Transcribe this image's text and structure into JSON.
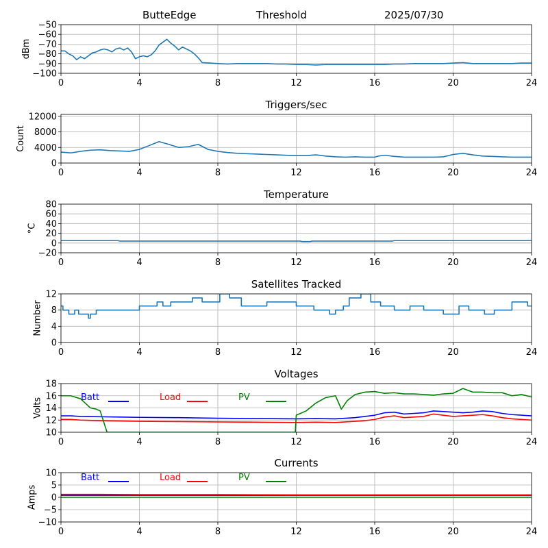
{
  "header": {
    "station": "ButteEdge",
    "mode": "Threshold",
    "date": "2025/07/30"
  },
  "colors": {
    "default": "#1f77b4",
    "batt": "#0000ff",
    "load": "#ff0000",
    "pv": "#008000",
    "grid": "#b0b0b0"
  },
  "x_axis": {
    "range": [
      0,
      24
    ],
    "ticks": [
      0,
      4,
      8,
      12,
      16,
      20,
      24
    ]
  },
  "chart_data": [
    {
      "id": "threshold",
      "type": "line",
      "title": "",
      "xlabel": "",
      "ylabel": "dBm",
      "xlim": [
        0,
        24
      ],
      "ylim": [
        -100,
        -50
      ],
      "yticks": [
        -50,
        -60,
        -70,
        -80,
        -90,
        -100
      ],
      "grid": true,
      "series": [
        {
          "color": "#1f77b4",
          "x": [
            0,
            0.2,
            0.4,
            0.6,
            0.8,
            1.0,
            1.2,
            1.4,
            1.6,
            1.8,
            2.0,
            2.2,
            2.4,
            2.6,
            2.8,
            3.0,
            3.2,
            3.4,
            3.6,
            3.8,
            4.0,
            4.2,
            4.4,
            4.6,
            4.8,
            5.0,
            5.2,
            5.4,
            5.6,
            5.8,
            6.0,
            6.2,
            6.4,
            6.6,
            6.8,
            7.0,
            7.2,
            7.6,
            8.0,
            8.5,
            9.0,
            9.5,
            10.0,
            10.5,
            11.0,
            11.5,
            12.0,
            12.5,
            13.0,
            13.5,
            14.0,
            14.5,
            15.0,
            15.5,
            16.0,
            16.5,
            17.0,
            17.5,
            18.0,
            18.5,
            19.0,
            19.5,
            20.0,
            20.5,
            21.0,
            21.5,
            22.0,
            22.5,
            23.0,
            23.5,
            24.0
          ],
          "y": [
            -77,
            -77,
            -80,
            -82,
            -86,
            -83,
            -85,
            -82,
            -79,
            -78,
            -76,
            -75,
            -76,
            -78,
            -75,
            -74,
            -76,
            -74,
            -78,
            -85,
            -83,
            -82,
            -83,
            -81,
            -77,
            -71,
            -68,
            -65,
            -69,
            -72,
            -76,
            -73,
            -75,
            -77,
            -80,
            -84,
            -89,
            -89.5,
            -90,
            -90.5,
            -90,
            -90,
            -90,
            -90,
            -90.5,
            -90.5,
            -91,
            -91,
            -91.5,
            -91,
            -91,
            -91,
            -91,
            -91,
            -91,
            -91,
            -90.5,
            -90.5,
            -90,
            -90,
            -90,
            -90,
            -89.5,
            -89,
            -90,
            -90,
            -90,
            -90,
            -90,
            -89.5,
            -89.5
          ]
        }
      ]
    },
    {
      "id": "triggers",
      "type": "line",
      "title": "Triggers/sec",
      "xlabel": "",
      "ylabel": "Count",
      "xlim": [
        0,
        24
      ],
      "ylim": [
        0,
        12500
      ],
      "yticks": [
        0,
        4000,
        8000,
        12000
      ],
      "grid": true,
      "series": [
        {
          "color": "#1f77b4",
          "x": [
            0,
            0.5,
            1.0,
            1.5,
            2.0,
            2.5,
            3.0,
            3.5,
            4.0,
            4.5,
            5.0,
            5.5,
            6.0,
            6.5,
            7.0,
            7.5,
            8.0,
            8.5,
            9.0,
            9.5,
            10.0,
            10.5,
            11.0,
            11.5,
            12.0,
            12.5,
            13.0,
            13.5,
            14.0,
            14.5,
            15.0,
            15.5,
            16.0,
            16.2,
            16.5,
            17.0,
            17.5,
            18.0,
            18.5,
            19.0,
            19.5,
            20.0,
            20.5,
            21.0,
            21.5,
            22.0,
            22.5,
            23.0,
            23.5,
            24.0
          ],
          "y": [
            2800,
            2600,
            3000,
            3300,
            3400,
            3200,
            3100,
            3000,
            3500,
            4500,
            5500,
            4800,
            4000,
            4200,
            4800,
            3500,
            3000,
            2700,
            2500,
            2400,
            2300,
            2200,
            2100,
            2000,
            1900,
            1900,
            2100,
            1800,
            1600,
            1500,
            1600,
            1500,
            1500,
            1800,
            2000,
            1700,
            1500,
            1500,
            1500,
            1500,
            1600,
            2200,
            2500,
            2100,
            1800,
            1700,
            1600,
            1500,
            1500,
            1500
          ]
        }
      ]
    },
    {
      "id": "temperature",
      "type": "line",
      "title": "Temperature",
      "xlabel": "",
      "ylabel": "°C",
      "xlim": [
        0,
        24
      ],
      "ylim": [
        -20,
        80
      ],
      "yticks": [
        -20,
        0,
        20,
        40,
        60,
        80
      ],
      "grid": true,
      "series": [
        {
          "color": "#1f77b4",
          "x": [
            0,
            2.9,
            3.0,
            12.2,
            12.3,
            12.7,
            12.8,
            16.9,
            17.0,
            24.0
          ],
          "y": [
            5,
            5,
            4,
            4,
            3,
            3,
            4,
            4,
            5,
            5
          ]
        }
      ]
    },
    {
      "id": "satellites",
      "type": "line",
      "title": "Satellites Tracked",
      "xlabel": "",
      "ylabel": "Number",
      "xlim": [
        0,
        24
      ],
      "ylim": [
        0,
        12
      ],
      "yticks": [
        0,
        4,
        8,
        12
      ],
      "grid": true,
      "series": [
        {
          "color": "#1f77b4",
          "x": [
            0,
            0.1,
            0.1,
            0.4,
            0.4,
            0.7,
            0.7,
            0.9,
            0.9,
            1.4,
            1.4,
            1.5,
            1.5,
            1.8,
            1.8,
            2.4,
            2.4,
            2.7,
            2.7,
            3.2,
            3.2,
            3.6,
            3.6,
            4.0,
            4.0,
            4.5,
            4.5,
            4.9,
            4.9,
            5.2,
            5.2,
            5.6,
            5.6,
            6.1,
            6.1,
            6.7,
            6.7,
            7.2,
            7.2,
            8.1,
            8.1,
            8.6,
            8.6,
            9.2,
            9.2,
            10.5,
            10.5,
            12.0,
            12.0,
            12.9,
            12.9,
            13.7,
            13.7,
            14.0,
            14.0,
            14.4,
            14.4,
            14.7,
            14.7,
            15.3,
            15.3,
            15.8,
            15.8,
            16.3,
            16.3,
            17.0,
            17.0,
            17.8,
            17.8,
            18.5,
            18.5,
            19.5,
            19.5,
            20.3,
            20.3,
            20.8,
            20.8,
            21.6,
            21.6,
            22.1,
            22.1,
            22.4,
            22.4,
            23.0,
            23.0,
            23.8,
            23.8,
            24.0
          ],
          "y": [
            9,
            9,
            8,
            8,
            7,
            7,
            8,
            8,
            7,
            7,
            6,
            6,
            7,
            7,
            8,
            8,
            8,
            8,
            8,
            8,
            8,
            8,
            8,
            8,
            9,
            9,
            9,
            9,
            10,
            10,
            9,
            9,
            10,
            10,
            10,
            10,
            11,
            11,
            10,
            10,
            12,
            12,
            11,
            11,
            9,
            9,
            10,
            10,
            9,
            9,
            8,
            8,
            7,
            7,
            8,
            8,
            9,
            9,
            11,
            11,
            12,
            12,
            10,
            10,
            9,
            9,
            8,
            8,
            9,
            9,
            8,
            8,
            7,
            7,
            9,
            9,
            8,
            8,
            7,
            7,
            8,
            8,
            8,
            8,
            10,
            10,
            9,
            9
          ]
        }
      ]
    },
    {
      "id": "voltages",
      "type": "line",
      "title": "Voltages",
      "xlabel": "",
      "ylabel": "Volts",
      "xlim": [
        0,
        24
      ],
      "ylim": [
        10,
        18
      ],
      "yticks": [
        10,
        12,
        14,
        16,
        18
      ],
      "grid": true,
      "legend": {
        "placement": "top-left",
        "entries": [
          "Batt",
          "Load",
          "PV"
        ]
      },
      "series": [
        {
          "name": "Batt",
          "color": "#0000ff",
          "x": [
            0,
            0.5,
            1,
            2,
            3,
            4,
            6,
            8,
            10,
            12,
            13,
            14,
            14.5,
            15,
            15.5,
            16,
            16.5,
            17,
            17.5,
            18,
            18.5,
            19,
            19.5,
            20,
            20.5,
            21,
            21.5,
            22,
            22.5,
            23,
            24
          ],
          "y": [
            12.7,
            12.7,
            12.6,
            12.55,
            12.5,
            12.45,
            12.4,
            12.3,
            12.25,
            12.2,
            12.25,
            12.2,
            12.3,
            12.4,
            12.6,
            12.8,
            13.2,
            13.3,
            13.0,
            13.1,
            13.2,
            13.5,
            13.4,
            13.3,
            13.2,
            13.3,
            13.5,
            13.4,
            13.1,
            12.9,
            12.7
          ]
        },
        {
          "name": "Load",
          "color": "#ff0000",
          "x": [
            0,
            0.5,
            1,
            2,
            3,
            4,
            6,
            8,
            10,
            12,
            13,
            14,
            14.5,
            15,
            15.5,
            16,
            16.5,
            17,
            17.5,
            18,
            18.5,
            19,
            19.5,
            20,
            20.5,
            21,
            21.5,
            22,
            22.5,
            23,
            24
          ],
          "y": [
            12.1,
            12.1,
            12.0,
            11.9,
            11.85,
            11.8,
            11.75,
            11.7,
            11.65,
            11.6,
            11.65,
            11.6,
            11.7,
            11.8,
            11.9,
            12.1,
            12.5,
            12.7,
            12.4,
            12.5,
            12.6,
            13.0,
            12.8,
            12.6,
            12.7,
            12.8,
            12.9,
            12.7,
            12.4,
            12.2,
            12.0
          ]
        },
        {
          "name": "PV",
          "color": "#008000",
          "x": [
            0,
            0.5,
            1.0,
            1.5,
            1.8,
            2.0,
            2.2,
            2.3,
            2.35,
            11.95,
            12.0,
            12.5,
            13.0,
            13.5,
            14.0,
            14.3,
            14.6,
            15.0,
            15.5,
            16.0,
            16.5,
            17.0,
            17.5,
            18.0,
            18.5,
            19.0,
            19.5,
            20.0,
            20.5,
            21.0,
            21.5,
            22.0,
            22.5,
            23.0,
            23.5,
            24.0
          ],
          "y": [
            16.0,
            16.0,
            15.5,
            14.0,
            13.8,
            13.5,
            11.5,
            10.5,
            10.0,
            10.0,
            12.8,
            13.5,
            14.8,
            15.7,
            16.0,
            13.8,
            15.2,
            16.2,
            16.6,
            16.7,
            16.4,
            16.5,
            16.3,
            16.3,
            16.2,
            16.1,
            16.3,
            16.4,
            17.2,
            16.6,
            16.6,
            16.5,
            16.5,
            16.0,
            16.2,
            15.8
          ]
        }
      ]
    },
    {
      "id": "currents",
      "type": "line",
      "title": "Currents",
      "xlabel": "",
      "ylabel": "Amps",
      "xlim": [
        0,
        24
      ],
      "ylim": [
        -10,
        10
      ],
      "yticks": [
        -10,
        -5,
        0,
        5,
        10
      ],
      "grid": true,
      "legend": {
        "placement": "top-left",
        "entries": [
          "Batt",
          "Load",
          "PV"
        ]
      },
      "series": [
        {
          "name": "Batt",
          "color": "#0000ff",
          "x": [
            0,
            24
          ],
          "y": [
            0.8,
            0.8
          ]
        },
        {
          "name": "Load",
          "color": "#ff0000",
          "x": [
            0,
            2,
            4,
            8,
            12,
            16,
            20,
            24
          ],
          "y": [
            1.2,
            1.2,
            1.1,
            1.1,
            1.0,
            1.0,
            1.0,
            1.0
          ]
        },
        {
          "name": "PV",
          "color": "#008000",
          "x": [
            0,
            24
          ],
          "y": [
            0.0,
            0.0
          ]
        }
      ]
    }
  ]
}
